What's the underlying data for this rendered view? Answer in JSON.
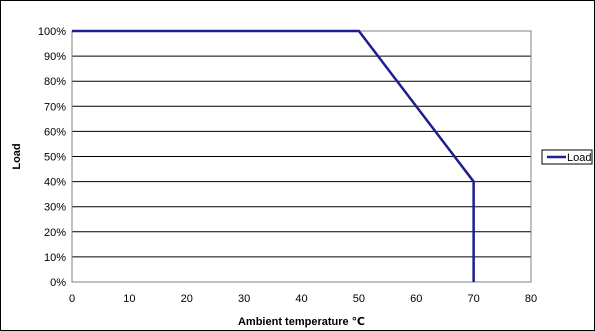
{
  "chart_data": {
    "type": "line",
    "title": "",
    "xlabel": "Ambient temperature ℃",
    "ylabel": "Load",
    "xlim": [
      0,
      80
    ],
    "ylim": [
      0,
      100
    ],
    "x_ticks": [
      0,
      10,
      20,
      30,
      40,
      50,
      60,
      70,
      80
    ],
    "y_ticks": [
      0,
      10,
      20,
      30,
      40,
      50,
      60,
      70,
      80,
      90,
      100
    ],
    "x_tick_labels": [
      "0",
      "10",
      "20",
      "30",
      "40",
      "50",
      "60",
      "70",
      "80"
    ],
    "y_tick_labels": [
      "0%",
      "10%",
      "20%",
      "30%",
      "40%",
      "50%",
      "60%",
      "70%",
      "80%",
      "90%",
      "100%"
    ],
    "grid": "horizontal",
    "legend_position": "right",
    "series": [
      {
        "name": "Load",
        "color": "#1f1f8f",
        "points": [
          {
            "x": 0,
            "y": 100
          },
          {
            "x": 50,
            "y": 100
          },
          {
            "x": 70,
            "y": 40
          },
          {
            "x": 70,
            "y": 0
          }
        ]
      }
    ]
  }
}
